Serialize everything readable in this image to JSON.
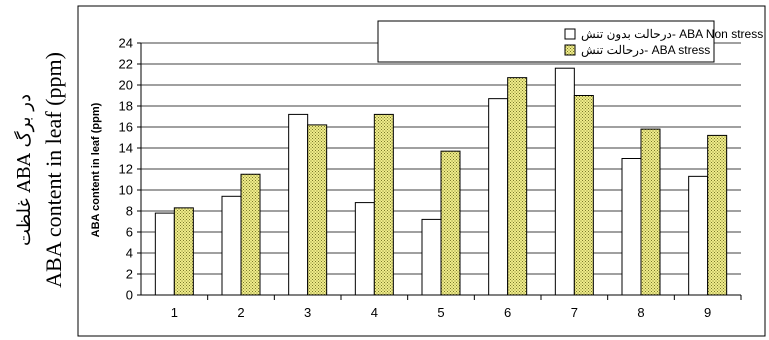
{
  "chart_data": {
    "type": "bar",
    "title": "",
    "xlabel": "",
    "ylabel_fa": "غلظت ABA در برگ",
    "ylabel_en": "ABA content in leaf (ppm)",
    "ylabel_small": "ABA content in leaf (ppm)",
    "categories": [
      "1",
      "2",
      "3",
      "4",
      "5",
      "6",
      "7",
      "8",
      "9"
    ],
    "ylim": [
      0,
      24
    ],
    "yticks": [
      "0",
      "2",
      "4",
      "6",
      "8",
      "10",
      "12",
      "14",
      "16",
      "18",
      "20",
      "22",
      "24"
    ],
    "grid": true,
    "legend_position": "top-right",
    "series": [
      {
        "name": "درحالت بدون تنش- ABA Non stress",
        "fill": "#ffffff",
        "values": [
          7.8,
          9.4,
          17.2,
          8.8,
          7.2,
          18.7,
          21.6,
          13.0,
          11.3
        ]
      },
      {
        "name": "درحالت تنش- ABA stress",
        "fill": "#f0ec8a",
        "values": [
          8.3,
          11.5,
          16.2,
          17.2,
          13.7,
          20.7,
          19.0,
          15.8,
          15.2
        ]
      }
    ]
  }
}
